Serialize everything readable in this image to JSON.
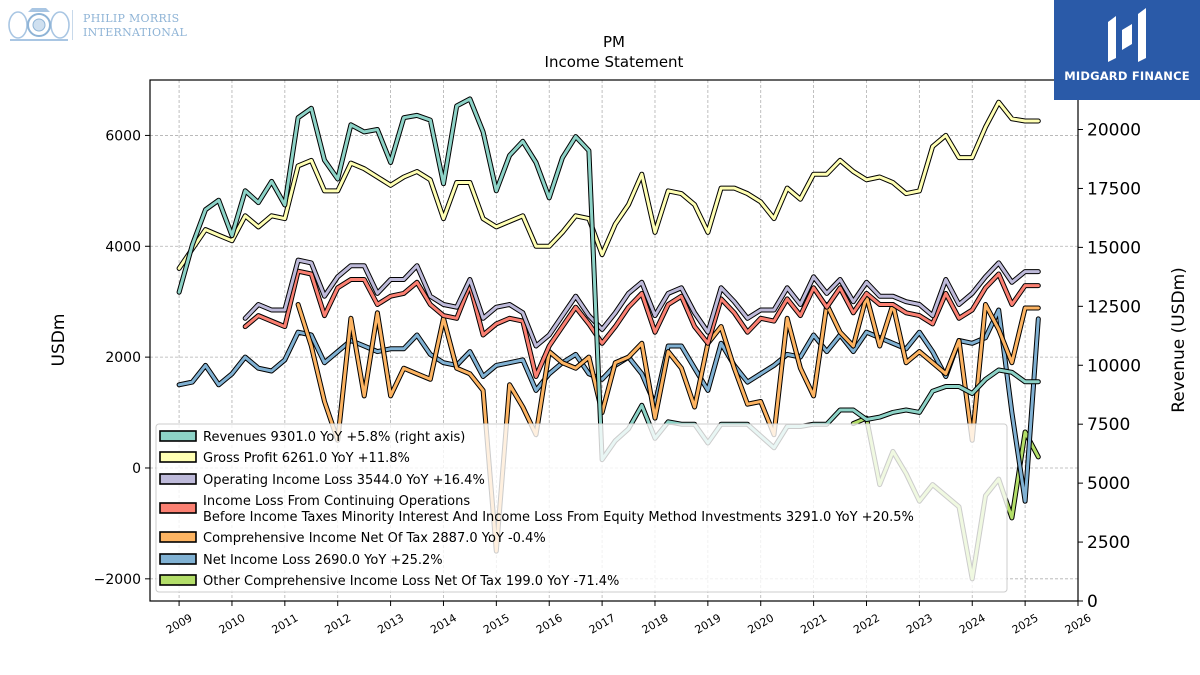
{
  "branding": {
    "left_logo_line1": "PHILIP MORRIS",
    "left_logo_line2": "INTERNATIONAL",
    "right_logo_text": "MIDGARD FINANCE"
  },
  "chart_data": {
    "type": "line",
    "title": "PM",
    "subtitle": "Income Statement",
    "ylabel": "USDm",
    "y2label": "Revenue (USDm)",
    "ylim": [
      -2400,
      7000
    ],
    "y2lim": [
      0,
      22100
    ],
    "xlim": [
      2008.45,
      2026.0
    ],
    "xticks": [
      "2009",
      "2010",
      "2011",
      "2012",
      "2013",
      "2014",
      "2015",
      "2016",
      "2017",
      "2018",
      "2019",
      "2020",
      "2021",
      "2022",
      "2023",
      "2024",
      "2025",
      "2026"
    ],
    "yticks": [
      "−2000",
      "0",
      "2000",
      "4000",
      "6000"
    ],
    "y2ticks": [
      "0",
      "2500",
      "5000",
      "7500",
      "10000",
      "12500",
      "15000",
      "17500",
      "20000"
    ],
    "grid": true,
    "legend_position": "lower-left",
    "series": [
      {
        "name": "Revenues  9301.0 YoY +5.8% (right axis)",
        "color": "#8dd3c7",
        "axis": "right",
        "x": [
          2009.0,
          2009.25,
          2009.5,
          2009.75,
          2010.0,
          2010.25,
          2010.5,
          2010.75,
          2011.0,
          2011.25,
          2011.5,
          2011.75,
          2012.0,
          2012.25,
          2012.5,
          2012.75,
          2013.0,
          2013.25,
          2013.5,
          2013.75,
          2014.0,
          2014.25,
          2014.5,
          2014.75,
          2015.0,
          2015.25,
          2015.5,
          2015.75,
          2016.0,
          2016.25,
          2016.5,
          2016.75,
          2017.0,
          2017.25,
          2017.5,
          2017.75,
          2018.0,
          2018.25,
          2018.5,
          2018.75,
          2019.0,
          2019.25,
          2019.5,
          2019.75,
          2020.0,
          2020.25,
          2020.5,
          2020.75,
          2021.0,
          2021.25,
          2021.5,
          2021.75,
          2022.0,
          2022.25,
          2022.5,
          2022.75,
          2023.0,
          2023.25,
          2023.5,
          2023.75,
          2024.0,
          2024.25,
          2024.5,
          2024.75,
          2025.0,
          2025.25
        ],
        "values": [
          13100,
          15100,
          16600,
          17000,
          15500,
          17400,
          16900,
          17800,
          16800,
          20500,
          20900,
          18700,
          17900,
          20200,
          19900,
          20000,
          18600,
          20500,
          20600,
          20400,
          17700,
          21000,
          21300,
          19900,
          17400,
          18900,
          19500,
          18600,
          17100,
          18800,
          19700,
          19100,
          6000,
          6800,
          7300,
          8300,
          6900,
          7600,
          7500,
          7500,
          6700,
          7500,
          7500,
          7500,
          7000,
          6500,
          7400,
          7400,
          7500,
          7500,
          8100,
          8100,
          7700,
          7800,
          8000,
          8100,
          8000,
          8900,
          9100,
          9100,
          8800,
          9400,
          9800,
          9700,
          9300,
          9301
        ]
      },
      {
        "name": "Gross Profit  6261.0 YoY +11.8%",
        "color": "#ffffb3",
        "axis": "left",
        "x": [
          2009.0,
          2009.25,
          2009.5,
          2009.75,
          2010.0,
          2010.25,
          2010.5,
          2010.75,
          2011.0,
          2011.25,
          2011.5,
          2011.75,
          2012.0,
          2012.25,
          2012.5,
          2012.75,
          2013.0,
          2013.25,
          2013.5,
          2013.75,
          2014.0,
          2014.25,
          2014.5,
          2014.75,
          2015.0,
          2015.25,
          2015.5,
          2015.75,
          2016.0,
          2016.25,
          2016.5,
          2016.75,
          2017.0,
          2017.25,
          2017.5,
          2017.75,
          2018.0,
          2018.25,
          2018.5,
          2018.75,
          2019.0,
          2019.25,
          2019.5,
          2019.75,
          2020.0,
          2020.25,
          2020.5,
          2020.75,
          2021.0,
          2021.25,
          2021.5,
          2021.75,
          2022.0,
          2022.25,
          2022.5,
          2022.75,
          2023.0,
          2023.25,
          2023.5,
          2023.75,
          2024.0,
          2024.25,
          2024.5,
          2024.75,
          2025.0,
          2025.25
        ],
        "values": [
          3600,
          3950,
          4300,
          4200,
          4100,
          4550,
          4350,
          4550,
          4500,
          5450,
          5550,
          5000,
          5000,
          5500,
          5400,
          5250,
          5100,
          5250,
          5350,
          5200,
          4500,
          5150,
          5150,
          4500,
          4350,
          4450,
          4550,
          4000,
          4000,
          4250,
          4550,
          4500,
          3850,
          4400,
          4750,
          5300,
          4250,
          5000,
          4950,
          4750,
          4250,
          5050,
          5050,
          4950,
          4800,
          4500,
          5050,
          4850,
          5300,
          5300,
          5550,
          5350,
          5200,
          5250,
          5150,
          4950,
          5000,
          5800,
          6000,
          5600,
          5600,
          6150,
          6600,
          6300,
          6261,
          6261
        ]
      },
      {
        "name": "Operating Income Loss  3544.0 YoY +16.4%",
        "color": "#bebada",
        "axis": "left",
        "x": [
          2010.25,
          2010.5,
          2010.75,
          2011.0,
          2011.25,
          2011.5,
          2011.75,
          2012.0,
          2012.25,
          2012.5,
          2012.75,
          2013.0,
          2013.25,
          2013.5,
          2013.75,
          2014.0,
          2014.25,
          2014.5,
          2014.75,
          2015.0,
          2015.25,
          2015.5,
          2015.75,
          2016.0,
          2016.25,
          2016.5,
          2016.75,
          2017.0,
          2017.25,
          2017.5,
          2017.75,
          2018.0,
          2018.25,
          2018.5,
          2018.75,
          2019.0,
          2019.25,
          2019.5,
          2019.75,
          2020.0,
          2020.25,
          2020.5,
          2020.75,
          2021.0,
          2021.25,
          2021.5,
          2021.75,
          2022.0,
          2022.25,
          2022.5,
          2022.75,
          2023.0,
          2023.25,
          2023.5,
          2023.75,
          2024.0,
          2024.25,
          2024.5,
          2024.75,
          2025.0,
          2025.25
        ],
        "values": [
          2700,
          2950,
          2850,
          2850,
          3750,
          3700,
          3100,
          3450,
          3650,
          3650,
          3150,
          3400,
          3400,
          3650,
          3100,
          2950,
          2900,
          3400,
          2700,
          2900,
          2950,
          2800,
          2200,
          2400,
          2750,
          3100,
          2750,
          2500,
          2800,
          3150,
          3350,
          2750,
          3150,
          3250,
          2800,
          2450,
          3250,
          3000,
          2700,
          2850,
          2850,
          3250,
          2950,
          3450,
          3150,
          3400,
          3000,
          3350,
          3100,
          3100,
          3000,
          2950,
          2750,
          3400,
          2950,
          3150,
          3450,
          3700,
          3350,
          3544,
          3544
        ]
      },
      {
        "name": "Income Loss From Continuing Operations\nBefore Income Taxes Minority Interest And Income Loss From Equity Method Investments  3291.0 YoY +20.5%",
        "color": "#fb8072",
        "axis": "left",
        "x": [
          2010.25,
          2010.5,
          2010.75,
          2011.0,
          2011.25,
          2011.5,
          2011.75,
          2012.0,
          2012.25,
          2012.5,
          2012.75,
          2013.0,
          2013.25,
          2013.5,
          2013.75,
          2014.0,
          2014.25,
          2014.5,
          2014.75,
          2015.0,
          2015.25,
          2015.5,
          2015.75,
          2016.0,
          2016.25,
          2016.5,
          2016.75,
          2017.0,
          2017.25,
          2017.5,
          2017.75,
          2018.0,
          2018.25,
          2018.5,
          2018.75,
          2019.0,
          2019.25,
          2019.5,
          2019.75,
          2020.0,
          2020.25,
          2020.5,
          2020.75,
          2021.0,
          2021.25,
          2021.5,
          2021.75,
          2022.0,
          2022.25,
          2022.5,
          2022.75,
          2023.0,
          2023.25,
          2023.5,
          2023.75,
          2024.0,
          2024.25,
          2024.5,
          2024.75,
          2025.0,
          2025.25
        ],
        "values": [
          2550,
          2750,
          2650,
          2550,
          3550,
          3500,
          2750,
          3250,
          3400,
          3400,
          2950,
          3100,
          3150,
          3350,
          2950,
          2750,
          2700,
          3300,
          2400,
          2600,
          2700,
          2650,
          1650,
          2200,
          2550,
          2900,
          2600,
          2250,
          2550,
          2900,
          3150,
          2450,
          2950,
          3100,
          2550,
          2250,
          3050,
          2800,
          2450,
          2700,
          2650,
          3050,
          2750,
          3250,
          2900,
          3250,
          2800,
          3150,
          2950,
          2950,
          2800,
          2750,
          2600,
          3150,
          2700,
          2850,
          3250,
          3500,
          2950,
          3291,
          3291
        ]
      },
      {
        "name": "Comprehensive Income Net Of Tax  2887.0 YoY -0.4%",
        "color": "#fdb462",
        "axis": "left",
        "x": [
          2011.25,
          2011.5,
          2011.75,
          2012.0,
          2012.25,
          2012.5,
          2012.75,
          2013.0,
          2013.25,
          2013.5,
          2013.75,
          2014.0,
          2014.25,
          2014.5,
          2014.75,
          2015.0,
          2015.25,
          2015.5,
          2015.75,
          2016.0,
          2016.25,
          2016.5,
          2016.75,
          2017.0,
          2017.25,
          2017.5,
          2017.75,
          2018.0,
          2018.25,
          2018.5,
          2018.75,
          2019.0,
          2019.25,
          2019.5,
          2019.75,
          2020.0,
          2020.25,
          2020.5,
          2020.75,
          2021.0,
          2021.25,
          2021.5,
          2021.75,
          2022.0,
          2022.25,
          2022.5,
          2022.75,
          2023.0,
          2023.25,
          2023.5,
          2023.75,
          2024.0,
          2024.25,
          2024.5,
          2024.75,
          2025.0,
          2025.25
        ],
        "values": [
          2950,
          2200,
          1200,
          500,
          2700,
          1300,
          2800,
          1300,
          1800,
          1700,
          1600,
          2700,
          1800,
          1700,
          1400,
          -1500,
          1500,
          1100,
          600,
          2100,
          1900,
          1800,
          2000,
          1000,
          1900,
          2000,
          2250,
          900,
          2100,
          1800,
          1100,
          2250,
          2550,
          1800,
          1150,
          1200,
          600,
          2700,
          1800,
          1300,
          2950,
          2450,
          2200,
          3100,
          2200,
          2950,
          1900,
          2100,
          1900,
          1700,
          2300,
          500,
          2950,
          2500,
          1900,
          2887,
          2887
        ]
      },
      {
        "name": "Net Income Loss  2690.0 YoY +25.2%",
        "color": "#80b1d3",
        "axis": "left",
        "x": [
          2009.0,
          2009.25,
          2009.5,
          2009.75,
          2010.0,
          2010.25,
          2010.5,
          2010.75,
          2011.0,
          2011.25,
          2011.5,
          2011.75,
          2012.0,
          2012.25,
          2012.5,
          2012.75,
          2013.0,
          2013.25,
          2013.5,
          2013.75,
          2014.0,
          2014.25,
          2014.5,
          2014.75,
          2015.0,
          2015.25,
          2015.5,
          2015.75,
          2016.0,
          2016.25,
          2016.5,
          2016.75,
          2017.0,
          2017.25,
          2017.5,
          2017.75,
          2018.0,
          2018.25,
          2018.5,
          2018.75,
          2019.0,
          2019.25,
          2019.5,
          2019.75,
          2020.0,
          2020.25,
          2020.5,
          2020.75,
          2021.0,
          2021.25,
          2021.5,
          2021.75,
          2022.0,
          2022.25,
          2022.5,
          2022.75,
          2023.0,
          2023.25,
          2023.5,
          2023.75,
          2024.0,
          2024.25,
          2024.5,
          2024.75,
          2025.0,
          2025.25
        ],
        "values": [
          1500,
          1550,
          1850,
          1500,
          1700,
          2000,
          1800,
          1750,
          1950,
          2450,
          2400,
          1900,
          2100,
          2300,
          2200,
          2100,
          2150,
          2150,
          2400,
          2050,
          1900,
          1850,
          2100,
          1650,
          1850,
          1900,
          1950,
          1400,
          1700,
          1900,
          2050,
          1700,
          1600,
          1850,
          2000,
          1700,
          1150,
          2200,
          2200,
          1800,
          1400,
          2250,
          1850,
          1550,
          1700,
          1850,
          2050,
          2000,
          2400,
          2100,
          2400,
          2100,
          2450,
          2350,
          2250,
          2150,
          2450,
          2100,
          1650,
          2300,
          2250,
          2350,
          2850,
          1000,
          -600,
          2690
        ]
      },
      {
        "name": "Other Comprehensive Income Loss Net Of Tax  199.0 YoY -71.4%",
        "color": "#b3de69",
        "axis": "left",
        "x": [
          2021.75,
          2022.0,
          2022.25,
          2022.5,
          2022.75,
          2023.0,
          2023.25,
          2023.5,
          2023.75,
          2024.0,
          2024.25,
          2024.5,
          2024.75,
          2025.0,
          2025.25
        ],
        "values": [
          800,
          900,
          -300,
          300,
          -100,
          -600,
          -300,
          -500,
          -700,
          -2000,
          -500,
          -200,
          -900,
          650,
          199
        ]
      }
    ]
  }
}
